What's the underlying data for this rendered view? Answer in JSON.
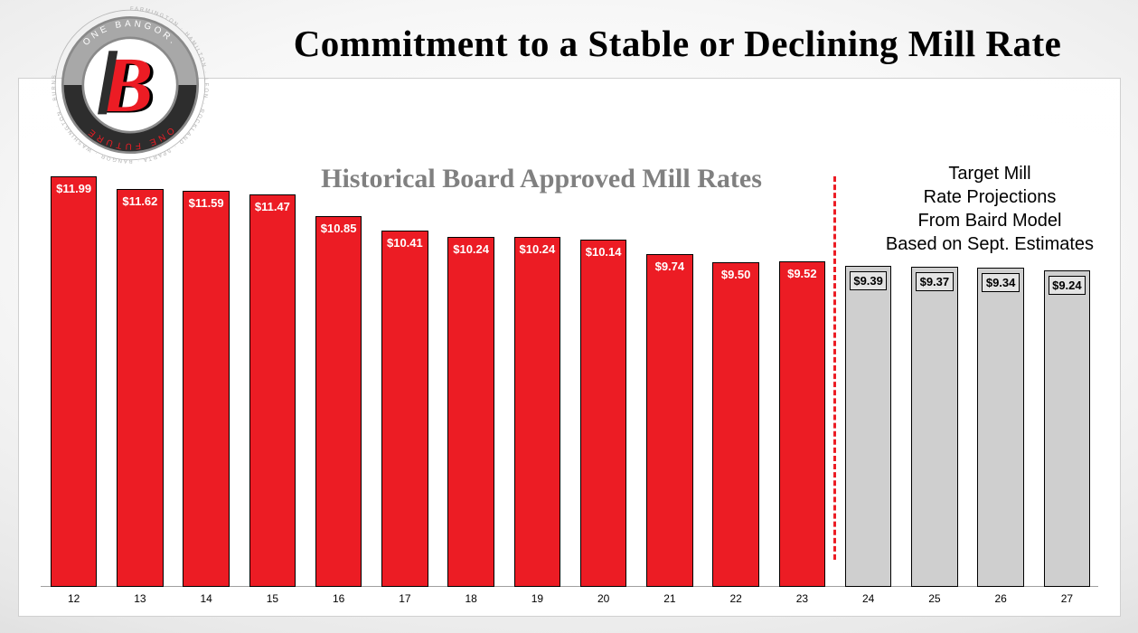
{
  "title": "Commitment to a Stable or Declining Mill Rate",
  "logo": {
    "upper_text": "ONE BANGOR.",
    "lower_text": "ONE FUTURE",
    "outer_words": "FARMINGTON · HAMILTON · LEON · ROCKLAND · SPARTA · BANGOR · WASHINGTON · BURNS ·",
    "letter": "B",
    "colors": {
      "upper": "#a8a8a8",
      "lower": "#2d2d2d",
      "accent": "#ec1c24",
      "ring": "#8a8a8a"
    }
  },
  "chart": {
    "type": "bar",
    "historical_label": "Historical Board Approved Mill Rates",
    "projection_label": "Target Mill<br>Rate Projections<br>From Baird Model<br>Based on Sept. Estimates",
    "y_max": 12.0,
    "bar_width_ratio": 0.7,
    "colors": {
      "historical": "#ec1c24",
      "projection": "#cfcfcf",
      "bar_border": "#000000",
      "value_text_hist": "#ffffff",
      "value_text_proj": "#000000",
      "divider": "#ec1c24",
      "background": "#ffffff",
      "hist_label": "#808080"
    },
    "value_fontsize": 13,
    "xlabel_fontsize": 12,
    "bars": [
      {
        "x": "12",
        "value": 11.99,
        "label": "$11.99",
        "kind": "historical"
      },
      {
        "x": "13",
        "value": 11.62,
        "label": "$11.62",
        "kind": "historical"
      },
      {
        "x": "14",
        "value": 11.59,
        "label": "$11.59",
        "kind": "historical"
      },
      {
        "x": "15",
        "value": 11.47,
        "label": "$11.47",
        "kind": "historical"
      },
      {
        "x": "16",
        "value": 10.85,
        "label": "$10.85",
        "kind": "historical"
      },
      {
        "x": "17",
        "value": 10.41,
        "label": "$10.41",
        "kind": "historical"
      },
      {
        "x": "18",
        "value": 10.24,
        "label": "$10.24",
        "kind": "historical"
      },
      {
        "x": "19",
        "value": 10.24,
        "label": "$10.24",
        "kind": "historical"
      },
      {
        "x": "20",
        "value": 10.14,
        "label": "$10.14",
        "kind": "historical"
      },
      {
        "x": "21",
        "value": 9.74,
        "label": "$9.74",
        "kind": "historical"
      },
      {
        "x": "22",
        "value": 9.5,
        "label": "$9.50",
        "kind": "historical"
      },
      {
        "x": "23",
        "value": 9.52,
        "label": "$9.52",
        "kind": "historical"
      },
      {
        "x": "24",
        "value": 9.39,
        "label": "$9.39",
        "kind": "projection"
      },
      {
        "x": "25",
        "value": 9.37,
        "label": "$9.37",
        "kind": "projection"
      },
      {
        "x": "26",
        "value": 9.34,
        "label": "$9.34",
        "kind": "projection"
      },
      {
        "x": "27",
        "value": 9.24,
        "label": "$9.24",
        "kind": "projection"
      }
    ]
  }
}
